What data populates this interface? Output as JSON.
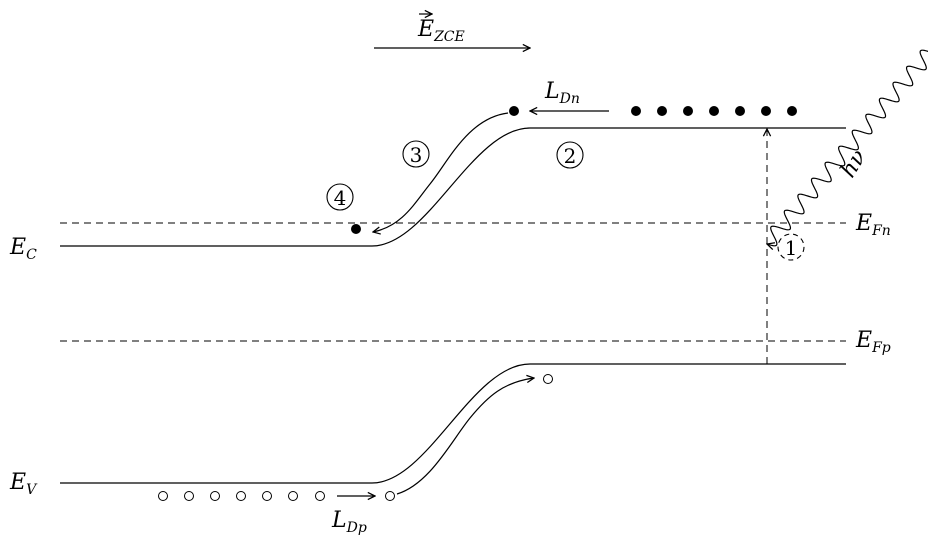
{
  "field_label": {
    "base": "E",
    "sub": "ZCE"
  },
  "levels": {
    "conduction": {
      "base": "E",
      "sub": "C"
    },
    "valence": {
      "base": "E",
      "sub": "V"
    },
    "fermi_n": {
      "base": "E",
      "sub": "Fn"
    },
    "fermi_p": {
      "base": "E",
      "sub": "Fp"
    }
  },
  "diffusion_lengths": {
    "electrons": {
      "base": "L",
      "sub": "Dn"
    },
    "holes": {
      "base": "L",
      "sub": "Dp"
    }
  },
  "photon_label": "hν",
  "steps": [
    "1",
    "2",
    "3",
    "4"
  ],
  "colors": {
    "ink": "#000000",
    "background": "#ffffff"
  }
}
